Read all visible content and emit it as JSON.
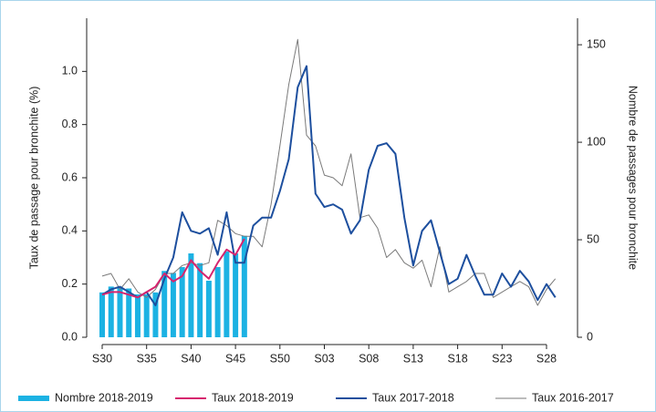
{
  "chart_data": {
    "type": "combo",
    "categories": [
      "S30",
      null,
      null,
      null,
      null,
      "S35",
      null,
      null,
      null,
      null,
      "S40",
      null,
      null,
      null,
      null,
      "S45",
      null,
      null,
      null,
      null,
      "S50",
      null,
      null,
      null,
      null,
      "S03",
      null,
      null,
      null,
      null,
      "S08",
      null,
      null,
      null,
      null,
      "S13",
      null,
      null,
      null,
      null,
      "S18",
      null,
      null,
      null,
      null,
      "S23",
      null,
      null,
      null,
      null,
      "S28",
      null
    ],
    "ylabel": "Taux de passage pour bronchite (%)",
    "y2label": "Nombre de passages pour bronchite",
    "ylim": [
      0,
      1.2
    ],
    "yticks": [
      {
        "value": 0,
        "label": "0.0"
      },
      0.2,
      0.4,
      0.6,
      0.8,
      {
        "value": 1,
        "label": "1.0"
      }
    ],
    "y2lim": [
      0,
      163.6
    ],
    "y2ticks": [
      0,
      50,
      100,
      150
    ],
    "series": [
      {
        "name": "Nombre 2018-2019",
        "type": "bar",
        "axis": "y2",
        "color": "#1cb2e3",
        "values": [
          23,
          26,
          26,
          25,
          22,
          22,
          23,
          34,
          33,
          36,
          43,
          38,
          29,
          36,
          44,
          43,
          52,
          null,
          null,
          null,
          null,
          null,
          null,
          null,
          null,
          null,
          null,
          null,
          null,
          null,
          null,
          null,
          null,
          null,
          null,
          null,
          null,
          null,
          null,
          null,
          null,
          null,
          null,
          null,
          null,
          null,
          null,
          null,
          null,
          null,
          null,
          null
        ]
      },
      {
        "name": "Taux 2018-2019",
        "type": "line",
        "color": "#d6246e",
        "values": [
          0.16,
          0.17,
          0.17,
          0.16,
          0.15,
          0.17,
          0.19,
          0.24,
          0.21,
          0.23,
          0.29,
          0.25,
          0.22,
          0.28,
          0.33,
          0.31,
          0.37,
          null,
          null,
          null,
          null,
          null,
          null,
          null,
          null,
          null,
          null,
          null,
          null,
          null,
          null,
          null,
          null,
          null,
          null,
          null,
          null,
          null,
          null,
          null,
          null,
          null,
          null,
          null,
          null,
          null,
          null,
          null,
          null,
          null,
          null,
          null
        ]
      },
      {
        "name": "Taux 2017-2018",
        "type": "line",
        "color": "#1d4f9e",
        "values": [
          0.16,
          0.18,
          0.19,
          0.17,
          0.15,
          0.17,
          0.12,
          0.22,
          0.3,
          0.47,
          0.4,
          0.39,
          0.41,
          0.31,
          0.47,
          0.28,
          0.28,
          0.42,
          0.45,
          0.45,
          0.55,
          0.67,
          0.94,
          1.02,
          0.54,
          0.49,
          0.5,
          0.48,
          0.39,
          0.44,
          0.63,
          0.72,
          0.73,
          0.69,
          0.45,
          0.27,
          0.4,
          0.44,
          0.32,
          0.2,
          0.22,
          0.31,
          0.23,
          0.16,
          0.16,
          0.24,
          0.19,
          0.25,
          0.21,
          0.14,
          0.2,
          0.15
        ]
      },
      {
        "name": "Taux 2016-2017",
        "type": "line",
        "color": "#7a7a7a",
        "values": [
          0.23,
          0.24,
          0.18,
          0.22,
          0.17,
          0.15,
          0.18,
          0.24,
          0.24,
          0.27,
          0.28,
          0.27,
          0.28,
          0.44,
          0.42,
          0.39,
          0.38,
          0.38,
          0.34,
          0.5,
          0.72,
          0.95,
          1.12,
          0.76,
          0.72,
          0.61,
          0.6,
          0.57,
          0.69,
          0.45,
          0.46,
          0.41,
          0.3,
          0.33,
          0.28,
          0.26,
          0.29,
          0.19,
          0.34,
          0.17,
          0.19,
          0.21,
          0.24,
          0.24,
          0.15,
          0.17,
          0.19,
          0.21,
          0.19,
          0.12,
          0.18,
          0.22
        ]
      }
    ]
  }
}
